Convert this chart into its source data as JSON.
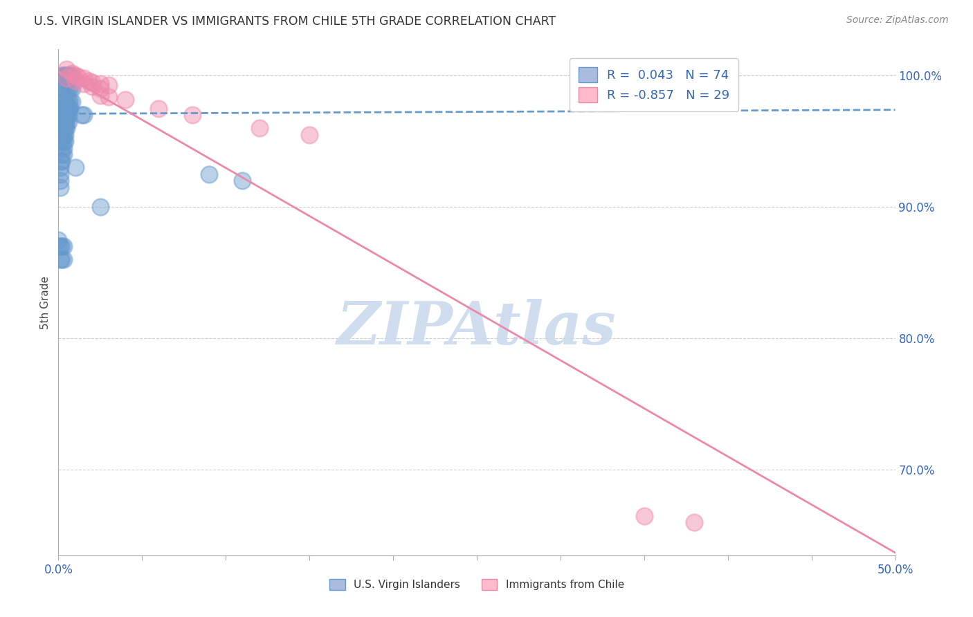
{
  "title": "U.S. VIRGIN ISLANDER VS IMMIGRANTS FROM CHILE 5TH GRADE CORRELATION CHART",
  "source": "Source: ZipAtlas.com",
  "ylabel": "5th Grade",
  "xlim": [
    0.0,
    0.5
  ],
  "ylim": [
    0.635,
    1.02
  ],
  "xticks": [
    0.0,
    0.05,
    0.1,
    0.15,
    0.2,
    0.25,
    0.3,
    0.35,
    0.4,
    0.45,
    0.5
  ],
  "xtick_labels": [
    "0.0%",
    "",
    "",
    "",
    "",
    "",
    "",
    "",
    "",
    "",
    "50.0%"
  ],
  "yticks_right": [
    0.7,
    0.8,
    0.9,
    1.0
  ],
  "ytick_labels_right": [
    "70.0%",
    "80.0%",
    "90.0%",
    "100.0%"
  ],
  "grid_color": "#cccccc",
  "background": "#ffffff",
  "blue_color": "#6699cc",
  "pink_color": "#ee88aa",
  "blue_R": 0.043,
  "blue_N": 74,
  "pink_R": -0.857,
  "pink_N": 29,
  "blue_scatter_x": [
    0.002,
    0.003,
    0.004,
    0.005,
    0.006,
    0.007,
    0.008,
    0.002,
    0.003,
    0.004,
    0.005,
    0.006,
    0.007,
    0.008,
    0.002,
    0.003,
    0.004,
    0.005,
    0.006,
    0.007,
    0.008,
    0.002,
    0.003,
    0.004,
    0.005,
    0.006,
    0.007,
    0.002,
    0.003,
    0.004,
    0.005,
    0.006,
    0.002,
    0.003,
    0.004,
    0.005,
    0.006,
    0.002,
    0.003,
    0.004,
    0.005,
    0.002,
    0.003,
    0.004,
    0.002,
    0.003,
    0.004,
    0.002,
    0.003,
    0.002,
    0.003,
    0.002,
    0.001,
    0.001,
    0.001,
    0.001,
    0.001,
    0.014,
    0.015,
    0.0,
    0.01,
    0.025,
    0.09,
    0.11,
    0.0,
    0.001,
    0.002,
    0.003,
    0.001,
    0.002,
    0.003
  ],
  "blue_scatter_y": [
    1.0,
    1.0,
    1.0,
    1.0,
    1.0,
    1.0,
    1.0,
    0.99,
    0.99,
    0.99,
    0.99,
    0.99,
    0.99,
    0.99,
    0.98,
    0.98,
    0.98,
    0.98,
    0.98,
    0.98,
    0.98,
    0.975,
    0.975,
    0.975,
    0.975,
    0.975,
    0.975,
    0.97,
    0.97,
    0.97,
    0.97,
    0.97,
    0.965,
    0.965,
    0.965,
    0.965,
    0.965,
    0.96,
    0.96,
    0.96,
    0.96,
    0.955,
    0.955,
    0.955,
    0.95,
    0.95,
    0.95,
    0.945,
    0.945,
    0.94,
    0.94,
    0.935,
    0.935,
    0.93,
    0.925,
    0.92,
    0.915,
    0.97,
    0.97,
    0.875,
    0.93,
    0.9,
    0.925,
    0.92,
    0.87,
    0.87,
    0.87,
    0.87,
    0.86,
    0.86,
    0.86
  ],
  "pink_scatter_x": [
    0.005,
    0.008,
    0.01,
    0.012,
    0.015,
    0.018,
    0.02,
    0.025,
    0.03,
    0.005,
    0.01,
    0.015,
    0.02,
    0.025,
    0.06,
    0.08,
    0.12,
    0.15,
    0.025,
    0.03,
    0.04,
    0.38,
    0.35
  ],
  "pink_scatter_y": [
    1.005,
    1.002,
    1.0,
    0.999,
    0.998,
    0.996,
    0.995,
    0.994,
    0.993,
    0.998,
    0.996,
    0.994,
    0.992,
    0.99,
    0.975,
    0.97,
    0.96,
    0.955,
    0.985,
    0.984,
    0.982,
    0.66,
    0.665
  ],
  "blue_trend_x": [
    0.0,
    0.5
  ],
  "blue_trend_y": [
    0.971,
    0.974
  ],
  "pink_trend_x": [
    0.0,
    0.5
  ],
  "pink_trend_y": [
    1.003,
    0.637
  ],
  "watermark": "ZIPAtlas",
  "watermark_color": "#c8d8ec",
  "legend_color": "#3366bb",
  "legend_elements": [
    {
      "label": "R =  0.043   N = 74",
      "facecolor": "#aabbdd",
      "edgecolor": "#6699cc"
    },
    {
      "label": "R = -0.857   N = 29",
      "facecolor": "#ffbbcc",
      "edgecolor": "#ee88aa"
    }
  ],
  "bottom_legend": [
    {
      "label": "U.S. Virgin Islanders",
      "facecolor": "#aabbdd",
      "edgecolor": "#6699cc"
    },
    {
      "label": "Immigrants from Chile",
      "facecolor": "#ffbbcc",
      "edgecolor": "#ee88aa"
    }
  ]
}
